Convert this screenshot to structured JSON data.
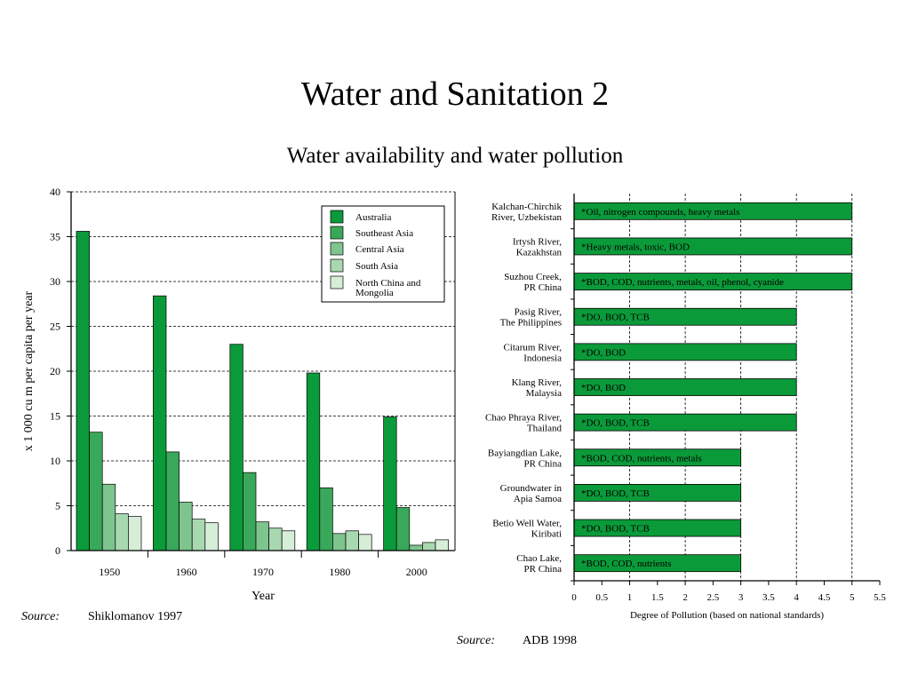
{
  "slide": {
    "title": "Water and Sanitation 2",
    "subtitle": "Water availability and water pollution"
  },
  "left_source": {
    "label": "Source:",
    "text": "Shiklomanov 1997"
  },
  "right_source": {
    "label": "Source:",
    "text": "ADB 1998"
  },
  "colors": {
    "Australia": "#0b9a3a",
    "Southeast Asia": "#3aa85a",
    "Central Asia": "#7ec48e",
    "South Asia": "#a8d8b0",
    "North China and Mongolia": "#d6eed8",
    "pollution_bar": "#0b9a3a"
  },
  "chart_data": [
    {
      "type": "bar",
      "title": "",
      "xlabel": "Year",
      "ylabel": "x 1 000 cu m per capita per year",
      "categories": [
        "1950",
        "1960",
        "1970",
        "1980",
        "2000"
      ],
      "ylim": [
        0,
        40
      ],
      "yticks": [
        0,
        5,
        10,
        15,
        20,
        25,
        30,
        35,
        40
      ],
      "grid": "horizontal dashed",
      "legend": "top-right",
      "series": [
        {
          "name": "Australia",
          "values": [
            35.6,
            28.4,
            23.0,
            19.8,
            14.9
          ]
        },
        {
          "name": "Southeast Asia",
          "values": [
            13.2,
            11.0,
            8.7,
            7.0,
            4.8
          ]
        },
        {
          "name": "Central Asia",
          "values": [
            7.4,
            5.4,
            3.2,
            1.9,
            0.6
          ]
        },
        {
          "name": "South Asia",
          "values": [
            4.1,
            3.5,
            2.5,
            2.2,
            0.9
          ]
        },
        {
          "name": "North China and Mongolia",
          "values": [
            3.8,
            3.1,
            2.2,
            1.8,
            1.2
          ]
        }
      ]
    },
    {
      "type": "bar",
      "orientation": "horizontal",
      "title": "",
      "xlabel": "Degree of Pollution (based on national standards)",
      "ylabel": "",
      "xlim": [
        0,
        5.5
      ],
      "xticks": [
        "0",
        "0.5",
        "1",
        "1.5",
        "2",
        "2.5",
        "3",
        "3.5",
        "4",
        "4.5",
        "5",
        "5.5"
      ],
      "grid": "vertical dashed",
      "categories": [
        [
          "Kalchan-Chirchik",
          "River, Uzbekistan"
        ],
        [
          "Irtysh River,",
          "Kazakhstan"
        ],
        [
          "Suzhou Creek,",
          "PR China"
        ],
        [
          "Pasig River,",
          "The Philippines"
        ],
        [
          "Citarum River,",
          "Indonesia"
        ],
        [
          "Klang River,",
          "Malaysia"
        ],
        [
          "Chao Phraya River,",
          "Thailand"
        ],
        [
          "Bayiangdian Lake,",
          "PR China"
        ],
        [
          "Groundwater in",
          "Apia Samoa"
        ],
        [
          "Betio Well Water,",
          "Kiribati"
        ],
        [
          "Chao Lake,",
          "PR China"
        ]
      ],
      "values": [
        5,
        5,
        5,
        4,
        4,
        4,
        4,
        3,
        3,
        3,
        3
      ],
      "annotations": [
        "*Oil, nitrogen compounds, heavy metals",
        "*Heavy metals, toxic, BOD",
        "*BOD, COD, nutrients, metals, oil, phenol, cyanide",
        "*DO, BOD, TCB",
        "*DO, BOD",
        "*DO, BOD",
        "*DO, BOD, TCB",
        "*BOD, COD, nutrients, metals",
        "*DO, BOD, TCB",
        "*DO, BOD, TCB",
        "*BOD, COD, nutrients"
      ]
    }
  ]
}
